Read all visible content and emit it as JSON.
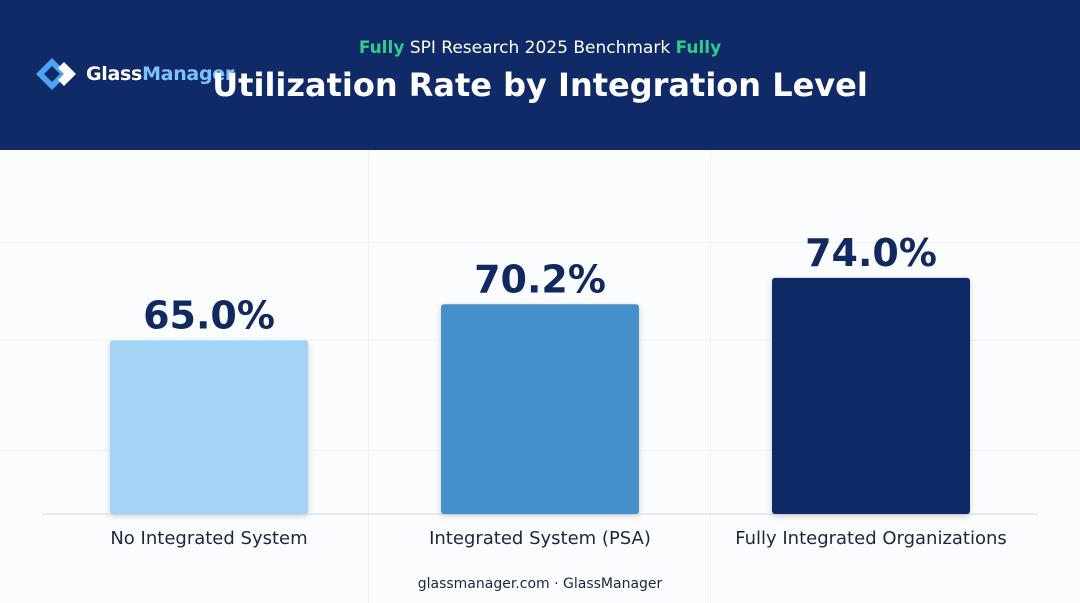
{
  "header": {
    "brand_primary": "Glass",
    "brand_secondary": "Manager",
    "subtitle_highlight_left": "Fully",
    "subtitle_text": "SPI Research 2025 Benchmark",
    "subtitle_highlight_right": "Fully",
    "colors": {
      "background": "#0f2a66",
      "highlight": "#2ecc8f",
      "logo_accent": "#4da3f5"
    },
    "logo_icon": "diamond-logo-icon"
  },
  "chart_data": {
    "type": "bar",
    "title": "Utilization Rate by Integration Level",
    "categories": [
      "No Integrated System",
      "Integrated System (PSA)",
      "Fully Integrated Organizations"
    ],
    "values": [
      65.0,
      70.2,
      74.0
    ],
    "data_labels": [
      "65.0%",
      "70.2%",
      "74.0%"
    ],
    "colors": [
      "#a3d4f5",
      "#4590ca",
      "#0f2a66"
    ],
    "xlabel": "",
    "ylabel": "",
    "ylim": [
      40,
      76
    ],
    "grid": false,
    "legend": "none"
  },
  "footer": {
    "text": "glassmanager.com · GlassManager"
  }
}
